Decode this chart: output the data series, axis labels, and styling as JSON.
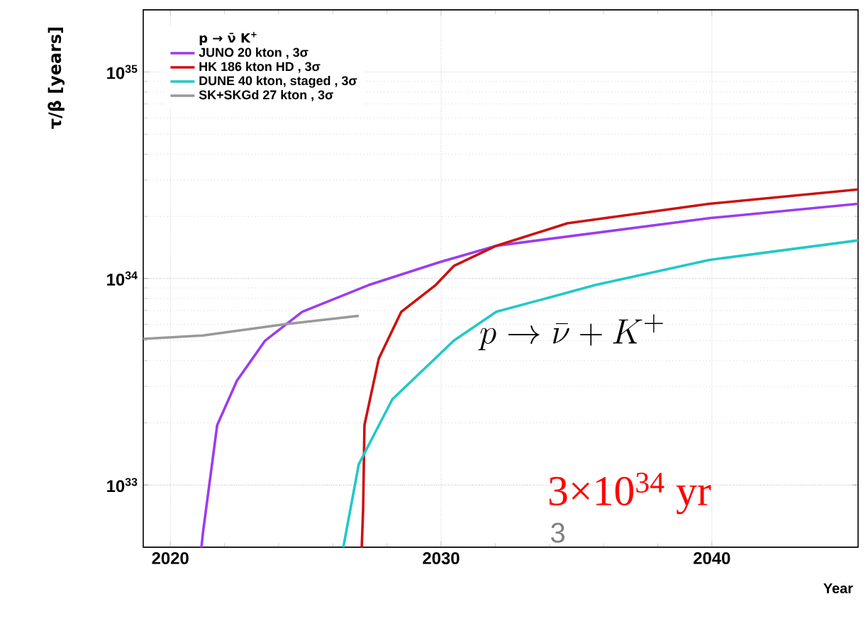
{
  "chart_data": {
    "type": "line",
    "xlabel": "Year",
    "ylabel": "τ/β [years]",
    "legend_title": "p → ν̄ K$^{+}$",
    "legend": "top left",
    "log": "y",
    "grid": true,
    "line_style": "solid",
    "xlim": [
      2019,
      2045.4
    ],
    "ylim": [
      5e+32,
      2e+35
    ],
    "xticks": [
      2020,
      2030,
      2040
    ],
    "yticks": [
      {
        "value": 1e+33,
        "label": "10$^{33}$"
      },
      {
        "value": 1e+34,
        "label": "10$^{34}$"
      },
      {
        "value": 1e+35,
        "label": "10$^{35}$"
      }
    ],
    "series": [
      {
        "name": "JUNO 20 kton , 3σ",
        "color": "#9b3cf0",
        "x": [
          2021.15,
          2021.2,
          2021.73,
          2022.46,
          2023.5,
          2024.87,
          2027.33,
          2029.95,
          2032.04,
          2039.9,
          2045.4
        ],
        "values": [
          5e+32,
          5.8e+32,
          1.95e+33,
          3.2e+33,
          5e+33,
          6.9e+33,
          9.3e+33,
          1.2e+34,
          1.44e+34,
          1.96e+34,
          2.3e+34
        ]
      },
      {
        "name": "HK 186 kton HD , 3σ",
        "color": "#cc1111",
        "x": [
          2027.07,
          2027.12,
          2027.17,
          2027.7,
          2028.53,
          2029.8,
          2030.47,
          2032.04,
          2034.66,
          2039.9,
          2045.4
        ],
        "values": [
          5e+32,
          7.6e+32,
          1.95e+33,
          4.1e+33,
          6.9e+33,
          9.3e+33,
          1.15e+34,
          1.44e+34,
          1.85e+34,
          2.3e+34,
          2.7e+34
        ]
      },
      {
        "name": "DUNE 40 kton, staged , 3σ",
        "color": "#22c8c8",
        "x": [
          2026.39,
          2026.96,
          2028.2,
          2030.47,
          2032.04,
          2035.7,
          2039.9,
          2045.4
        ],
        "values": [
          5e+32,
          1.26e+33,
          2.6e+33,
          5e+33,
          6.9e+33,
          9.3e+33,
          1.23e+34,
          1.53e+34
        ]
      },
      {
        "name": "SK+SKGd 27 kton , 3σ",
        "color": "#999999",
        "x": [
          2019,
          2021.2,
          2024.2,
          2026.96
        ],
        "values": [
          5.1e+33,
          5.3e+33,
          6e+33,
          6.6e+33
        ]
      }
    ],
    "annotations": [
      "p \\rightarrow \\bar{\\nu} + K^{+}",
      "3×10$^{34}$ yr",
      "3"
    ]
  }
}
